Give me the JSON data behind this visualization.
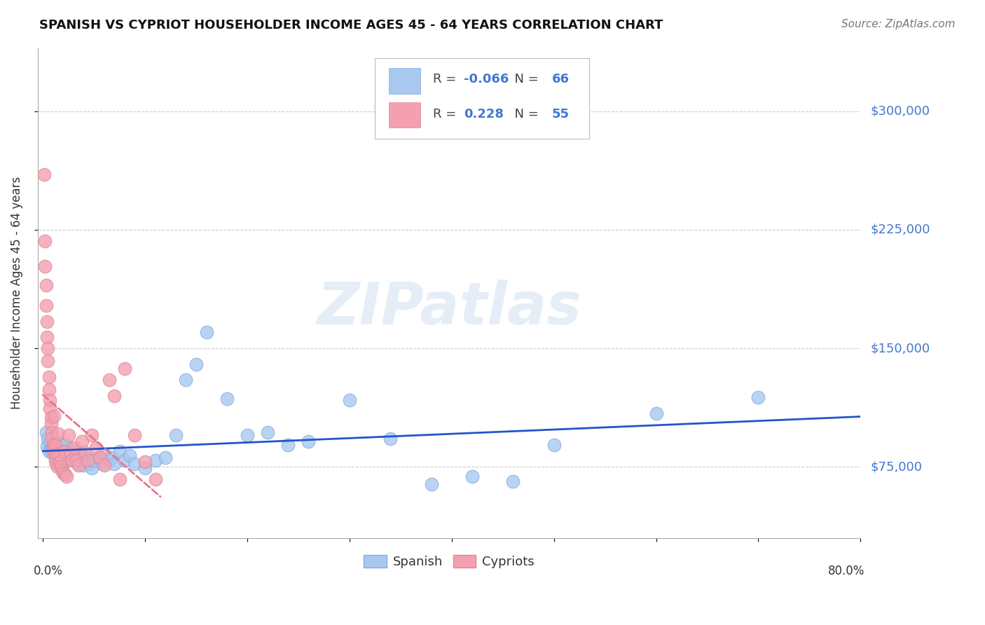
{
  "title": "SPANISH VS CYPRIOT HOUSEHOLDER INCOME AGES 45 - 64 YEARS CORRELATION CHART",
  "source": "Source: ZipAtlas.com",
  "ylabel": "Householder Income Ages 45 - 64 years",
  "ytick_labels": [
    "$75,000",
    "$150,000",
    "$225,000",
    "$300,000"
  ],
  "ytick_values": [
    75000,
    150000,
    225000,
    300000
  ],
  "legend_r_spanish": "-0.066",
  "legend_n_spanish": "66",
  "legend_r_cypriot": "0.228",
  "legend_n_cypriot": "55",
  "spanish_color": "#a8c8f0",
  "cypriot_color": "#f4a0b0",
  "trendline_spanish_color": "#2255cc",
  "trendline_cypriot_color": "#e8758a",
  "watermark_text": "ZIPatlas",
  "xlim": [
    0.0,
    0.8
  ],
  "ylim": [
    30000,
    340000
  ],
  "spanish_x": [
    0.003,
    0.004,
    0.005,
    0.006,
    0.007,
    0.008,
    0.009,
    0.01,
    0.011,
    0.012,
    0.013,
    0.014,
    0.015,
    0.016,
    0.017,
    0.018,
    0.019,
    0.02,
    0.021,
    0.022,
    0.023,
    0.024,
    0.025,
    0.026,
    0.027,
    0.028,
    0.03,
    0.032,
    0.034,
    0.036,
    0.038,
    0.04,
    0.042,
    0.045,
    0.048,
    0.05,
    0.055,
    0.058,
    0.06,
    0.065,
    0.068,
    0.07,
    0.075,
    0.08,
    0.085,
    0.09,
    0.1,
    0.11,
    0.12,
    0.13,
    0.14,
    0.15,
    0.16,
    0.18,
    0.2,
    0.22,
    0.24,
    0.26,
    0.3,
    0.34,
    0.38,
    0.42,
    0.46,
    0.5,
    0.6,
    0.7
  ],
  "spanish_y": [
    97000,
    88000,
    93000,
    85000,
    91000,
    86000,
    84000,
    92000,
    88000,
    85000,
    83000,
    87000,
    84000,
    90000,
    86000,
    84000,
    82000,
    87000,
    83000,
    89000,
    81000,
    79000,
    84000,
    82000,
    86000,
    83000,
    79000,
    81000,
    77000,
    84000,
    79000,
    76000,
    81000,
    77000,
    74000,
    79000,
    81000,
    77000,
    83000,
    79000,
    81000,
    77000,
    85000,
    79000,
    82000,
    77000,
    74000,
    79000,
    81000,
    95000,
    130000,
    140000,
    160000,
    118000,
    95000,
    97000,
    89000,
    91000,
    117000,
    93000,
    64000,
    69000,
    66000,
    89000,
    109000,
    119000
  ],
  "cypriot_x": [
    0.001,
    0.002,
    0.002,
    0.003,
    0.003,
    0.004,
    0.004,
    0.005,
    0.005,
    0.006,
    0.006,
    0.007,
    0.007,
    0.008,
    0.008,
    0.009,
    0.009,
    0.01,
    0.01,
    0.011,
    0.011,
    0.012,
    0.012,
    0.013,
    0.013,
    0.014,
    0.015,
    0.016,
    0.017,
    0.018,
    0.019,
    0.02,
    0.021,
    0.022,
    0.023,
    0.025,
    0.027,
    0.029,
    0.031,
    0.033,
    0.035,
    0.038,
    0.041,
    0.044,
    0.048,
    0.052,
    0.056,
    0.06,
    0.065,
    0.07,
    0.075,
    0.08,
    0.09,
    0.1,
    0.11
  ],
  "cypriot_y": [
    260000,
    218000,
    202000,
    190000,
    177000,
    167000,
    157000,
    150000,
    142000,
    132000,
    124000,
    117000,
    112000,
    106000,
    102000,
    97000,
    93000,
    89000,
    86000,
    107000,
    84000,
    89000,
    79000,
    83000,
    77000,
    75000,
    96000,
    83000,
    78000,
    75000,
    73000,
    71000,
    85000,
    70000,
    69000,
    95000,
    84000,
    79000,
    87000,
    79000,
    76000,
    91000,
    84000,
    79000,
    95000,
    87000,
    81000,
    76000,
    130000,
    120000,
    67000,
    137000,
    95000,
    78000,
    67000
  ]
}
